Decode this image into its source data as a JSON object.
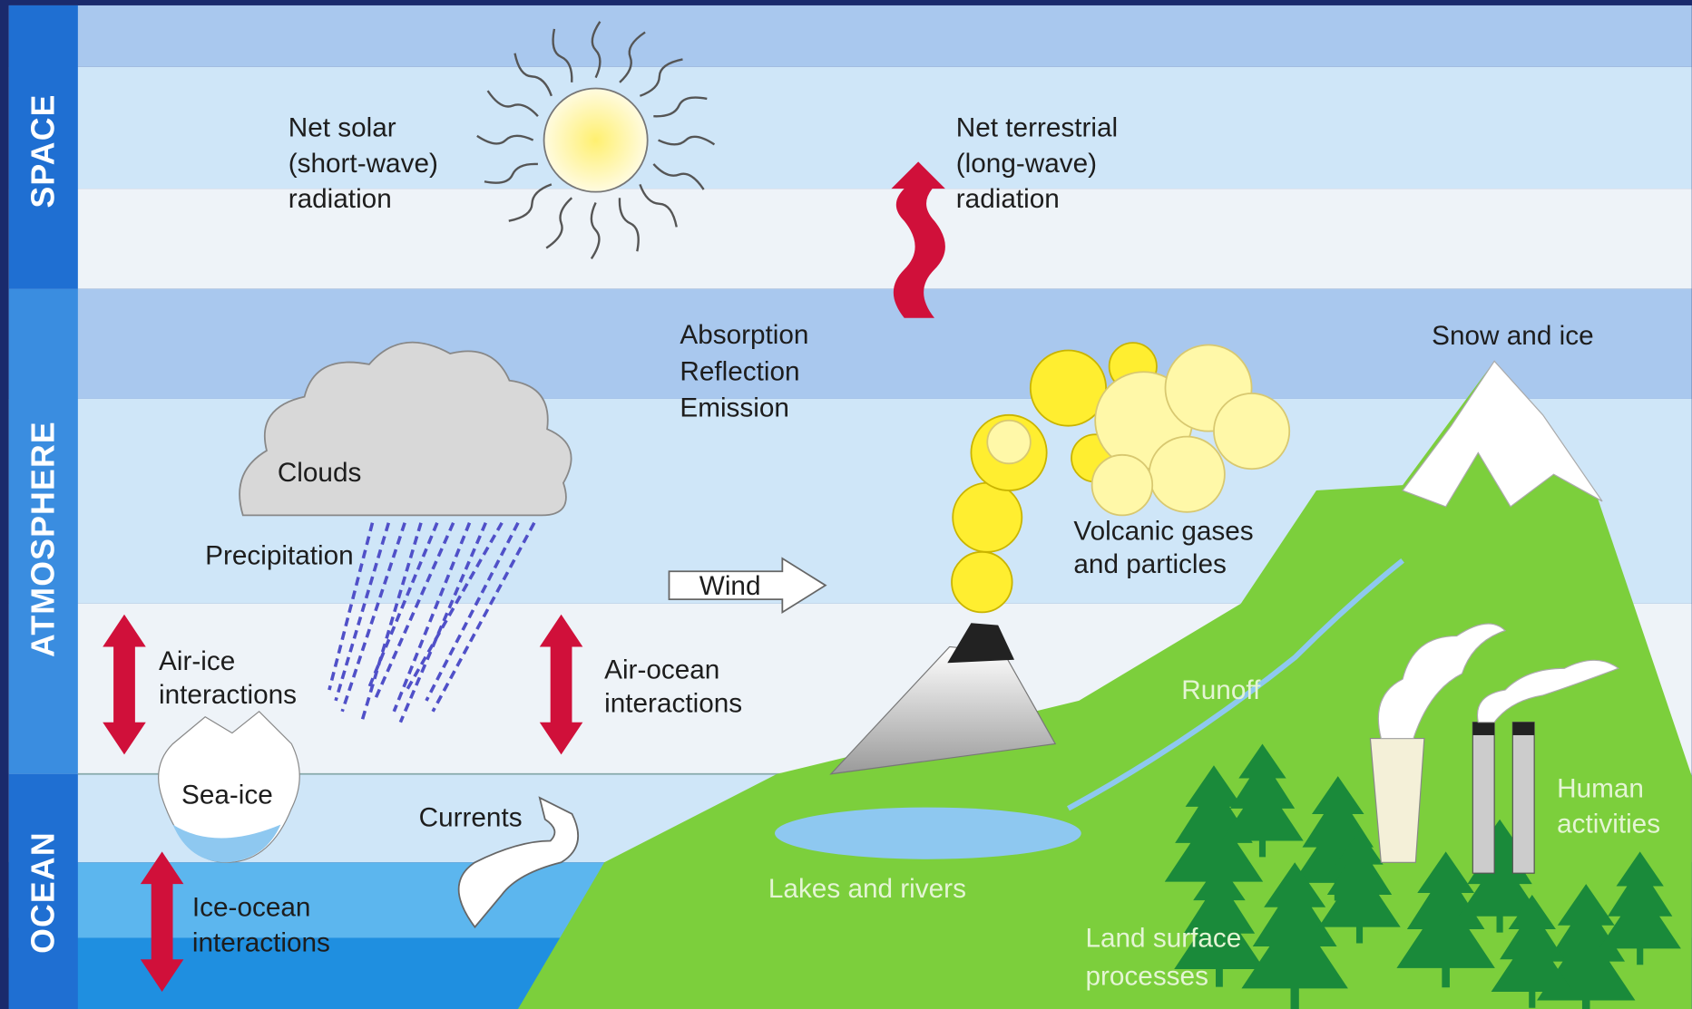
{
  "sections": [
    "SPACE",
    "ATMOSPHERE",
    "OCEAN"
  ],
  "labels": [
    {
      "lines": [
        "Net solar",
        "(short-wave)",
        "radiation"
      ]
    },
    {
      "lines": [
        "Net terrestrial",
        "(long-wave)",
        "radiation"
      ]
    },
    {
      "lines": [
        "Absorption",
        "Reflection",
        "Emission"
      ]
    },
    {
      "lines": [
        "Snow and ice"
      ]
    },
    {
      "lines": [
        "Clouds"
      ]
    },
    {
      "lines": [
        "Precipitation"
      ]
    },
    {
      "lines": [
        "Wind"
      ]
    },
    {
      "lines": [
        "Volcanic gases",
        "and particles"
      ]
    },
    {
      "lines": [
        "Air-ice",
        "interactions"
      ]
    },
    {
      "lines": [
        "Air-ocean",
        "interactions"
      ]
    },
    {
      "lines": [
        "Runoff"
      ]
    },
    {
      "lines": [
        "Sea-ice"
      ]
    },
    {
      "lines": [
        "Currents"
      ]
    },
    {
      "lines": [
        "Lakes and rivers"
      ]
    },
    {
      "lines": [
        "Human",
        "activities"
      ]
    },
    {
      "lines": [
        "Ice-ocean",
        "interactions"
      ]
    },
    {
      "lines": [
        "Land surface",
        "processes"
      ]
    }
  ]
}
